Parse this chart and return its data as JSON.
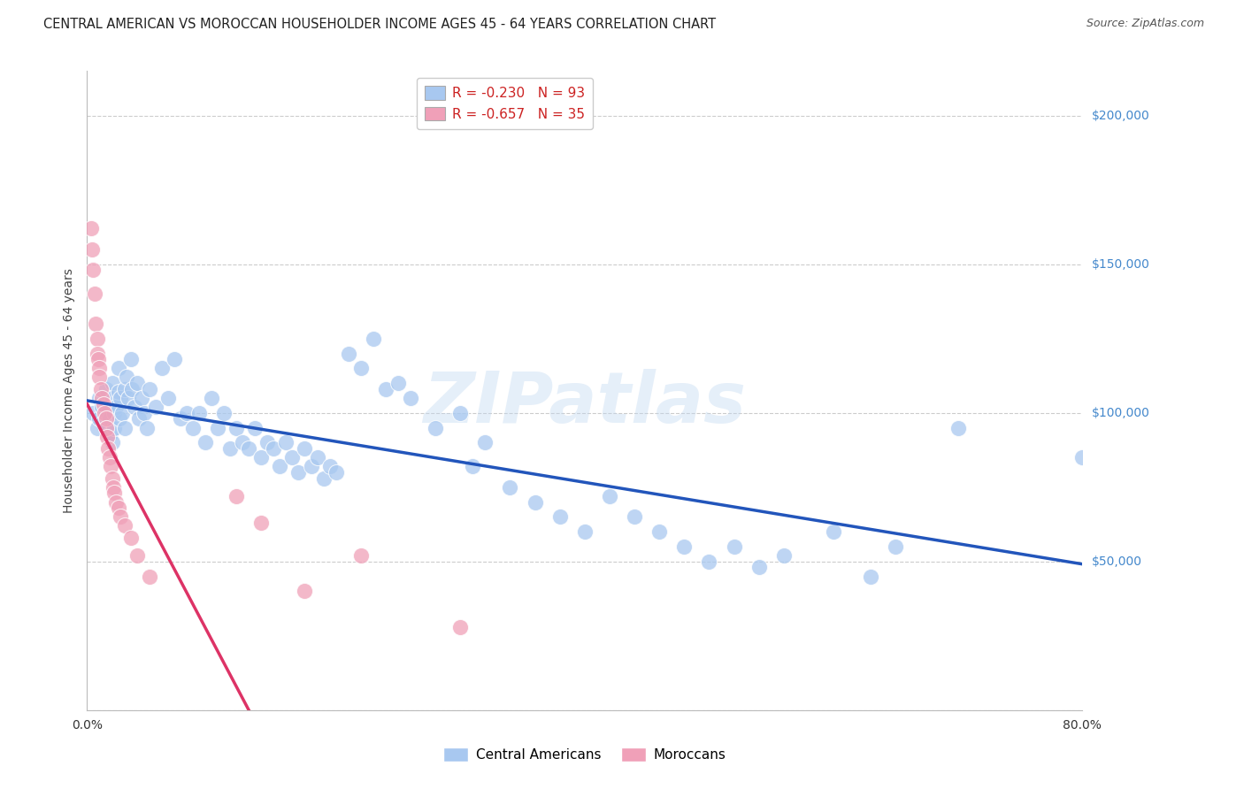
{
  "title": "CENTRAL AMERICAN VS MOROCCAN HOUSEHOLDER INCOME AGES 45 - 64 YEARS CORRELATION CHART",
  "source": "Source: ZipAtlas.com",
  "ylabel": "Householder Income Ages 45 - 64 years",
  "xlim": [
    0.0,
    0.8
  ],
  "ylim": [
    0,
    215000
  ],
  "yticks": [
    0,
    50000,
    100000,
    150000,
    200000
  ],
  "ytick_labels": [
    "",
    "$50,000",
    "$100,000",
    "$150,000",
    "$200,000"
  ],
  "xticks": [
    0.0,
    0.1,
    0.2,
    0.3,
    0.4,
    0.5,
    0.6,
    0.7,
    0.8
  ],
  "xtick_labels": [
    "0.0%",
    "",
    "",
    "",
    "",
    "",
    "",
    "",
    "80.0%"
  ],
  "blue_color": "#A8C8F0",
  "pink_color": "#F0A0B8",
  "blue_line_color": "#2255BB",
  "pink_line_color": "#DD3366",
  "pink_line_dashed_color": "#DDB0C0",
  "watermark": "ZIPatlas",
  "legend_R_blue": "-0.230",
  "legend_N_blue": "93",
  "legend_R_pink": "-0.657",
  "legend_N_pink": "35",
  "title_fontsize": 10.5,
  "source_fontsize": 9,
  "axis_label_fontsize": 10,
  "tick_fontsize": 10,
  "ytick_color": "#4488CC",
  "grid_color": "#CCCCCC",
  "background_color": "#FFFFFF",
  "blue_scatter_x": [
    0.005,
    0.008,
    0.01,
    0.01,
    0.012,
    0.013,
    0.015,
    0.015,
    0.016,
    0.017,
    0.018,
    0.019,
    0.02,
    0.02,
    0.02,
    0.022,
    0.022,
    0.023,
    0.025,
    0.025,
    0.026,
    0.027,
    0.028,
    0.03,
    0.03,
    0.032,
    0.033,
    0.035,
    0.036,
    0.038,
    0.04,
    0.042,
    0.044,
    0.046,
    0.048,
    0.05,
    0.055,
    0.06,
    0.065,
    0.07,
    0.075,
    0.08,
    0.085,
    0.09,
    0.095,
    0.1,
    0.105,
    0.11,
    0.115,
    0.12,
    0.125,
    0.13,
    0.135,
    0.14,
    0.145,
    0.15,
    0.155,
    0.16,
    0.165,
    0.17,
    0.175,
    0.18,
    0.185,
    0.19,
    0.195,
    0.2,
    0.21,
    0.22,
    0.23,
    0.24,
    0.25,
    0.26,
    0.28,
    0.3,
    0.31,
    0.32,
    0.34,
    0.36,
    0.38,
    0.4,
    0.42,
    0.44,
    0.46,
    0.48,
    0.5,
    0.52,
    0.54,
    0.56,
    0.6,
    0.63,
    0.65,
    0.7,
    0.8
  ],
  "blue_scatter_y": [
    100000,
    95000,
    105000,
    98000,
    102000,
    97000,
    108000,
    100000,
    95000,
    100000,
    98000,
    93000,
    110000,
    105000,
    90000,
    100000,
    95000,
    102000,
    115000,
    107000,
    98000,
    105000,
    100000,
    108000,
    95000,
    112000,
    105000,
    118000,
    108000,
    102000,
    110000,
    98000,
    105000,
    100000,
    95000,
    108000,
    102000,
    115000,
    105000,
    118000,
    98000,
    100000,
    95000,
    100000,
    90000,
    105000,
    95000,
    100000,
    88000,
    95000,
    90000,
    88000,
    95000,
    85000,
    90000,
    88000,
    82000,
    90000,
    85000,
    80000,
    88000,
    82000,
    85000,
    78000,
    82000,
    80000,
    120000,
    115000,
    125000,
    108000,
    110000,
    105000,
    95000,
    100000,
    82000,
    90000,
    75000,
    70000,
    65000,
    60000,
    72000,
    65000,
    60000,
    55000,
    50000,
    55000,
    48000,
    52000,
    60000,
    45000,
    55000,
    95000,
    85000
  ],
  "pink_scatter_x": [
    0.003,
    0.004,
    0.005,
    0.006,
    0.007,
    0.008,
    0.008,
    0.009,
    0.01,
    0.01,
    0.011,
    0.012,
    0.013,
    0.014,
    0.015,
    0.015,
    0.016,
    0.017,
    0.018,
    0.019,
    0.02,
    0.021,
    0.022,
    0.023,
    0.025,
    0.027,
    0.03,
    0.035,
    0.04,
    0.05,
    0.12,
    0.14,
    0.175,
    0.22,
    0.3
  ],
  "pink_scatter_y": [
    162000,
    155000,
    148000,
    140000,
    130000,
    125000,
    120000,
    118000,
    115000,
    112000,
    108000,
    105000,
    103000,
    100000,
    98000,
    95000,
    92000,
    88000,
    85000,
    82000,
    78000,
    75000,
    73000,
    70000,
    68000,
    65000,
    62000,
    58000,
    52000,
    45000,
    72000,
    63000,
    40000,
    52000,
    28000
  ]
}
